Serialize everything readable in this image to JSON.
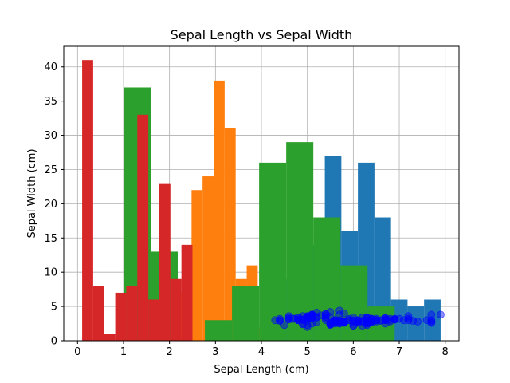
{
  "chart_data": {
    "type": "bar",
    "title": "Sepal Length vs Sepal Width",
    "xlabel": "Sepal Length (cm)",
    "ylabel": "Sepal Width (cm)",
    "xlim": [
      -0.3,
      8.3
    ],
    "ylim": [
      0,
      43
    ],
    "xticks": [
      0,
      1,
      2,
      3,
      4,
      5,
      6,
      7,
      8
    ],
    "yticks": [
      0,
      5,
      10,
      15,
      20,
      25,
      30,
      35,
      40
    ],
    "grid": true,
    "colors": {
      "sepal_length": "#1f77b4",
      "sepal_width": "#ff7f0e",
      "petal_length": "#2ca02c",
      "petal_width": "#d62728",
      "scatter": "#0000ff"
    },
    "series": [
      {
        "type": "histogram",
        "color_key": "sepal_length",
        "bin_edges": [
          4.3,
          4.66,
          5.02,
          5.38,
          5.74,
          6.1,
          6.46,
          6.82,
          7.18,
          7.54,
          7.9
        ],
        "counts": [
          9,
          23,
          14,
          27,
          16,
          26,
          18,
          6,
          5,
          6
        ]
      },
      {
        "type": "histogram",
        "color_key": "sepal_width",
        "bin_edges": [
          2.0,
          2.24,
          2.48,
          2.72,
          2.96,
          3.2,
          3.44,
          3.68,
          3.92,
          4.16,
          4.4
        ],
        "counts": [
          4,
          7,
          22,
          24,
          38,
          31,
          9,
          11,
          2,
          2
        ]
      },
      {
        "type": "histogram",
        "color_key": "petal_length",
        "bin_edges": [
          1.0,
          1.59,
          2.18,
          2.77,
          3.36,
          3.95,
          4.54,
          5.13,
          5.72,
          6.31,
          6.9
        ],
        "counts": [
          37,
          13,
          0,
          3,
          8,
          26,
          29,
          18,
          11,
          5
        ]
      },
      {
        "type": "histogram",
        "color_key": "petal_width",
        "bin_edges": [
          0.1,
          0.34,
          0.58,
          0.82,
          1.06,
          1.3,
          1.54,
          1.78,
          2.02,
          2.26,
          2.5
        ],
        "counts": [
          41,
          8,
          1,
          7,
          8,
          33,
          6,
          23,
          9,
          14
        ]
      },
      {
        "type": "scatter",
        "color_key": "scatter",
        "x": [
          5.1,
          4.9,
          4.7,
          4.6,
          5.0,
          5.4,
          4.6,
          5.0,
          4.4,
          4.9,
          5.4,
          4.8,
          4.8,
          4.3,
          5.8,
          5.7,
          5.4,
          5.1,
          5.7,
          5.1,
          5.4,
          5.1,
          4.6,
          5.1,
          4.8,
          5.0,
          5.0,
          5.2,
          5.2,
          4.7,
          4.8,
          5.4,
          5.2,
          5.5,
          4.9,
          5.0,
          5.5,
          4.9,
          4.4,
          5.1,
          5.0,
          4.5,
          4.4,
          5.0,
          5.1,
          4.8,
          5.1,
          4.6,
          5.3,
          5.0,
          7.0,
          6.4,
          6.9,
          5.5,
          6.5,
          5.7,
          6.3,
          4.9,
          6.6,
          5.2,
          5.0,
          5.9,
          6.0,
          6.1,
          5.6,
          6.7,
          5.6,
          5.8,
          6.2,
          5.6,
          5.9,
          6.1,
          6.3,
          6.1,
          6.4,
          6.6,
          6.8,
          6.7,
          6.0,
          5.7,
          5.5,
          5.5,
          5.8,
          6.0,
          5.4,
          6.0,
          6.7,
          6.3,
          5.6,
          5.5,
          5.5,
          6.1,
          5.8,
          5.0,
          5.6,
          5.7,
          5.7,
          6.2,
          5.1,
          5.7,
          6.3,
          5.8,
          7.1,
          6.3,
          6.5,
          7.6,
          4.9,
          7.3,
          6.7,
          7.2,
          6.5,
          6.4,
          6.8,
          5.7,
          5.8,
          6.4,
          6.5,
          7.7,
          7.7,
          6.0,
          6.9,
          5.6,
          7.7,
          6.3,
          6.7,
          7.2,
          6.2,
          6.1,
          6.4,
          7.2,
          7.4,
          7.9,
          6.4,
          6.3,
          6.1,
          7.7,
          6.3,
          6.4,
          6.0,
          6.9,
          6.7,
          6.9,
          5.8,
          6.8,
          6.7,
          6.7,
          6.3,
          6.5,
          6.2,
          5.9
        ],
        "y": [
          3.5,
          3.0,
          3.2,
          3.1,
          3.6,
          3.9,
          3.4,
          3.4,
          2.9,
          3.1,
          3.7,
          3.4,
          3.0,
          3.0,
          4.0,
          4.4,
          3.9,
          3.5,
          3.8,
          3.8,
          3.4,
          3.7,
          3.6,
          3.3,
          3.4,
          3.0,
          3.4,
          3.5,
          3.4,
          3.2,
          3.1,
          3.4,
          4.1,
          4.2,
          3.1,
          3.2,
          3.5,
          3.6,
          3.0,
          3.4,
          3.5,
          2.3,
          3.2,
          3.5,
          3.8,
          3.0,
          3.8,
          3.2,
          3.7,
          3.3,
          3.2,
          3.2,
          3.1,
          2.3,
          2.8,
          2.8,
          3.3,
          2.4,
          2.9,
          2.7,
          2.0,
          3.0,
          2.2,
          2.9,
          2.9,
          3.1,
          3.0,
          2.7,
          2.2,
          2.5,
          3.2,
          2.8,
          2.5,
          2.8,
          2.9,
          3.0,
          2.8,
          3.0,
          2.9,
          2.6,
          2.4,
          2.4,
          2.7,
          2.7,
          3.0,
          3.4,
          3.1,
          2.3,
          3.0,
          2.5,
          2.6,
          3.0,
          2.6,
          2.3,
          2.7,
          3.0,
          2.9,
          2.9,
          2.5,
          2.8,
          3.3,
          2.7,
          3.0,
          2.9,
          3.0,
          3.0,
          2.5,
          2.9,
          2.5,
          3.6,
          3.2,
          2.7,
          3.0,
          2.5,
          2.8,
          3.2,
          3.0,
          3.8,
          2.6,
          2.2,
          3.2,
          2.8,
          2.8,
          2.7,
          3.3,
          3.2,
          2.8,
          3.0,
          2.8,
          3.0,
          2.8,
          3.8,
          2.8,
          2.8,
          2.6,
          3.0,
          3.4,
          3.1,
          3.0,
          3.1,
          3.1,
          3.1,
          2.7,
          3.2,
          3.3,
          3.0,
          2.5,
          3.0,
          3.4,
          3.0
        ]
      }
    ]
  }
}
